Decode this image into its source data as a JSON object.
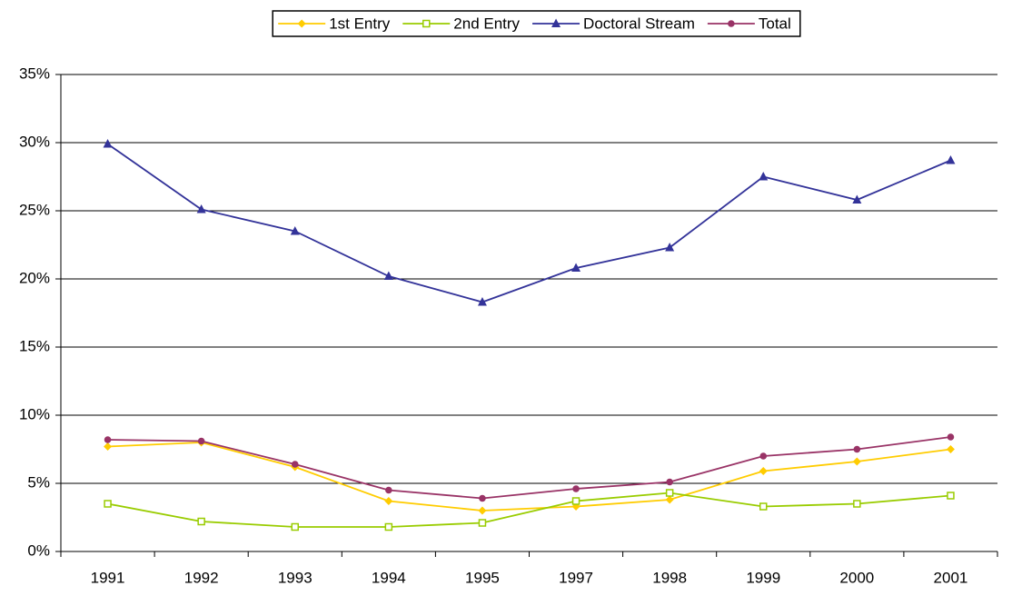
{
  "chart_data": {
    "type": "line",
    "categories": [
      "1991",
      "1992",
      "1993",
      "1994",
      "1995",
      "1997",
      "1998",
      "1999",
      "2000",
      "2001"
    ],
    "series": [
      {
        "name": "1st Entry",
        "color": "#ffcc00",
        "marker": "diamond",
        "values": [
          7.7,
          8.0,
          6.2,
          3.7,
          3.0,
          3.3,
          3.8,
          5.9,
          6.6,
          7.5
        ]
      },
      {
        "name": "2nd Entry",
        "color": "#99cc00",
        "marker": "square",
        "values": [
          3.5,
          2.2,
          1.8,
          1.8,
          2.1,
          3.7,
          4.3,
          3.3,
          3.5,
          4.1
        ]
      },
      {
        "name": "Doctoral Stream",
        "color": "#333399",
        "marker": "triangle",
        "values": [
          29.9,
          25.1,
          23.5,
          20.2,
          18.3,
          20.8,
          22.3,
          27.5,
          25.8,
          28.7
        ]
      },
      {
        "name": "Total",
        "color": "#993366",
        "marker": "circle",
        "values": [
          8.2,
          8.1,
          6.4,
          4.5,
          3.9,
          4.6,
          5.1,
          7.0,
          7.5,
          8.4
        ]
      }
    ],
    "ylim": [
      0,
      35
    ],
    "yticks": [
      {
        "value": 0,
        "label": "0%"
      },
      {
        "value": 5,
        "label": "5%"
      },
      {
        "value": 10,
        "label": "10%"
      },
      {
        "value": 15,
        "label": "15%"
      },
      {
        "value": 20,
        "label": "20%"
      },
      {
        "value": 25,
        "label": "25%"
      },
      {
        "value": 30,
        "label": "30%"
      },
      {
        "value": 35,
        "label": "35%"
      }
    ],
    "grid": true,
    "legend": "top"
  }
}
